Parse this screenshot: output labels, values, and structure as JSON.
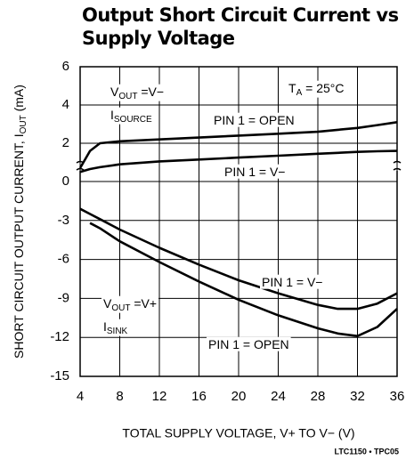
{
  "chart_data": [
    {
      "type": "line",
      "title": [
        "Output Short Circuit Current vs",
        "Supply Voltage"
      ],
      "ylabel": {
        "parts": [
          "SHORT CIRCUIT OUTPUT CURRENT, I",
          "OUT",
          " (mA)"
        ]
      },
      "xlabel": "TOTAL SUPPLY VOLTAGE, V+ TO V− (V)",
      "note": "LTC1150 • TPC05",
      "xlim": [
        4,
        36
      ],
      "xticks": [
        4,
        8,
        12,
        16,
        20,
        24,
        28,
        32,
        36
      ],
      "ylim": [
        0,
        6
      ],
      "yticks": [
        2,
        4,
        6
      ],
      "grid": true,
      "x": [
        4,
        5,
        6,
        8,
        12,
        16,
        20,
        24,
        28,
        30,
        32,
        34,
        36
      ],
      "series": [
        {
          "name": "PIN 1 = OPEN",
          "color": "#000000",
          "values": [
            0.7,
            1.6,
            2.0,
            2.1,
            2.2,
            2.3,
            2.4,
            2.5,
            2.6,
            2.7,
            2.8,
            2.95,
            3.1
          ]
        },
        {
          "name": "PIN 1 = V−",
          "color": "#000000",
          "values": [
            0.5,
            0.65,
            0.75,
            0.9,
            1.05,
            1.15,
            1.25,
            1.35,
            1.45,
            1.5,
            1.55,
            1.58,
            1.6
          ]
        }
      ],
      "annotations": [
        {
          "parts": [
            "V",
            "OUT",
            " =V−"
          ]
        },
        {
          "parts": [
            "I",
            "SOURCE"
          ]
        },
        {
          "parts": [
            "T",
            "A",
            " = 25°C"
          ]
        },
        {
          "parts": [
            "PIN 1 = OPEN"
          ]
        },
        {
          "parts": [
            "PIN 1 = V−"
          ]
        }
      ]
    },
    {
      "type": "line",
      "ylim": [
        -15,
        0
      ],
      "yticks": [
        0,
        -3,
        -6,
        -9,
        -12,
        -15
      ],
      "grid": true,
      "x": [
        4,
        5,
        6,
        8,
        12,
        16,
        20,
        24,
        28,
        30,
        32,
        34,
        36
      ],
      "series": [
        {
          "name": "PIN 1 = V−",
          "color": "#000000",
          "values": [
            -2.1,
            -2.5,
            -2.9,
            -3.7,
            -5.1,
            -6.4,
            -7.6,
            -8.6,
            -9.5,
            -9.8,
            -9.8,
            -9.4,
            -8.6
          ]
        },
        {
          "name": "PIN 1 = OPEN",
          "color": "#000000",
          "values": [
            null,
            -3.2,
            -3.6,
            -4.6,
            -6.2,
            -7.7,
            -9.1,
            -10.3,
            -11.3,
            -11.7,
            -11.9,
            -11.2,
            -9.8
          ]
        }
      ],
      "annotations": [
        {
          "parts": [
            "PIN 1 = V−"
          ]
        },
        {
          "parts": [
            "V",
            "OUT",
            " =V+"
          ]
        },
        {
          "parts": [
            "I",
            "SINK"
          ]
        },
        {
          "parts": [
            "PIN 1 = OPEN"
          ]
        }
      ]
    }
  ]
}
